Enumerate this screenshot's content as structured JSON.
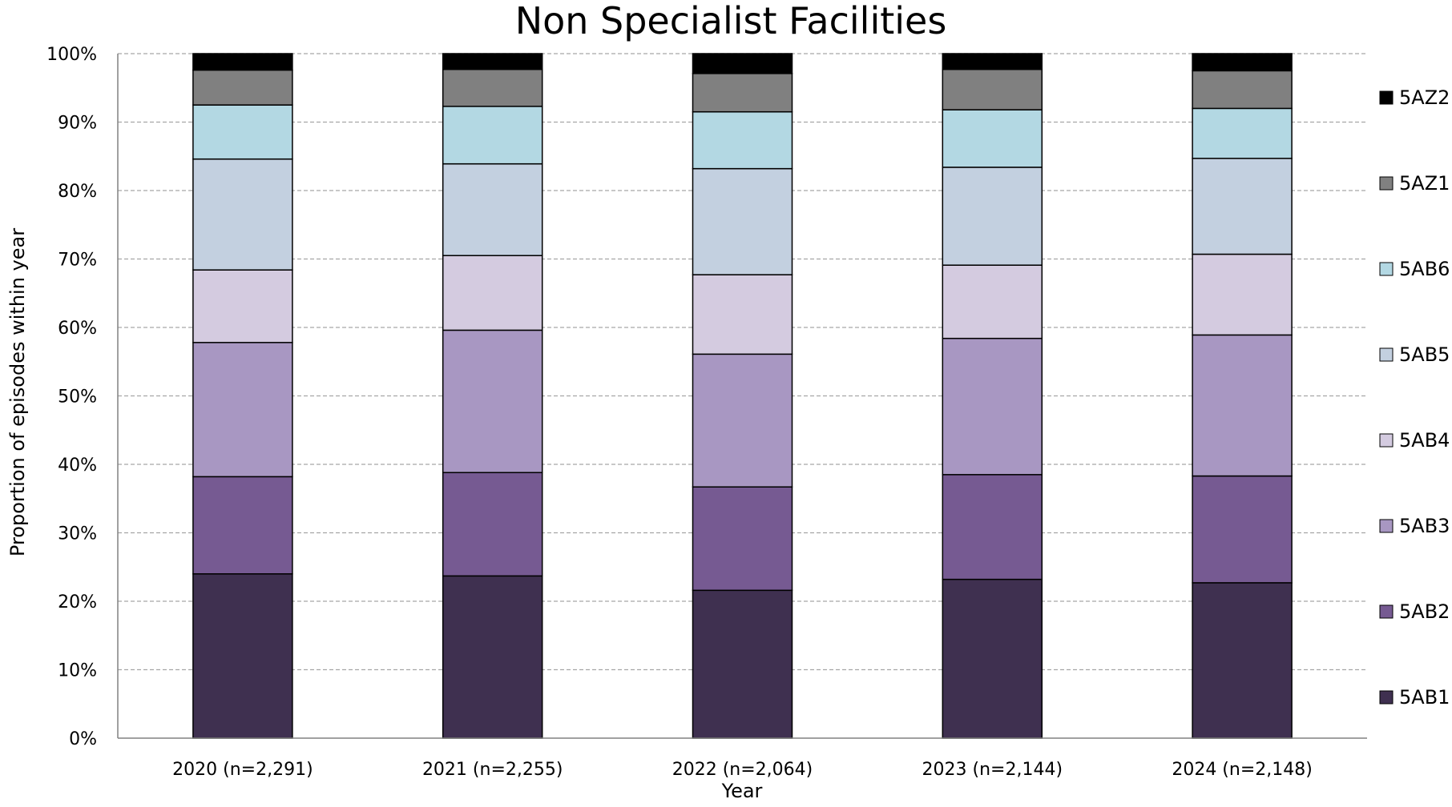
{
  "chart_data": {
    "type": "bar",
    "stacked": true,
    "title": "Non Specialist Facilities",
    "xlabel": "Year",
    "ylabel": "Proportion of episodes within year",
    "ylim": [
      0,
      100
    ],
    "y_ticks": [
      "0%",
      "10%",
      "20%",
      "30%",
      "40%",
      "50%",
      "60%",
      "70%",
      "80%",
      "90%",
      "100%"
    ],
    "grid": true,
    "legend_position": "right",
    "categories": [
      "2020 (n=2,291)",
      "2021 (n=2,255)",
      "2022 (n=2,064)",
      "2023 (n=2,144)",
      "2024 (n=2,148)"
    ],
    "series": [
      {
        "name": "5AB1",
        "color": "#3f3050",
        "values": [
          24.0,
          23.7,
          21.6,
          23.2,
          22.7
        ]
      },
      {
        "name": "5AB2",
        "color": "#765a92",
        "values": [
          14.2,
          15.1,
          15.1,
          15.3,
          15.6
        ]
      },
      {
        "name": "5AB3",
        "color": "#a897c2",
        "values": [
          19.6,
          20.8,
          19.4,
          19.9,
          20.6
        ]
      },
      {
        "name": "5AB4",
        "color": "#d4cbe0",
        "values": [
          10.6,
          10.9,
          11.6,
          10.7,
          11.8
        ]
      },
      {
        "name": "5AB5",
        "color": "#c3d0e0",
        "values": [
          16.2,
          13.4,
          15.5,
          14.3,
          14.0
        ]
      },
      {
        "name": "5AB6",
        "color": "#b3d8e3",
        "values": [
          7.9,
          8.4,
          8.3,
          8.4,
          7.3
        ]
      },
      {
        "name": "5AZ1",
        "color": "#808080",
        "values": [
          5.1,
          5.4,
          5.6,
          5.9,
          5.5
        ]
      },
      {
        "name": "5AZ2",
        "color": "#000000",
        "values": [
          2.4,
          2.3,
          2.9,
          2.3,
          2.5
        ]
      }
    ]
  }
}
